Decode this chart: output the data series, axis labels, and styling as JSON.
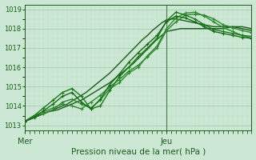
{
  "xlabel": "Pression niveau de la mer( hPa )",
  "bg_color": "#cce8d4",
  "grid_major_color": "#aaccb4",
  "grid_minor_color": "#bbddc4",
  "line_color_dark": "#1a5c1a",
  "ylim": [
    1012.75,
    1019.25
  ],
  "yticks": [
    1013,
    1014,
    1015,
    1016,
    1017,
    1018,
    1019
  ],
  "xlim": [
    0,
    48
  ],
  "mer_x": 0,
  "jeu_x": 30,
  "vline_x": 30,
  "vline_color": "#4a7a4a",
  "lines": [
    {
      "x": [
        0,
        1,
        2,
        3,
        4,
        5,
        6,
        7,
        8,
        9,
        10,
        11,
        12,
        13,
        14,
        15,
        16,
        17,
        18,
        19,
        20,
        21,
        22,
        23,
        24,
        25,
        26,
        27,
        28,
        29,
        30,
        31,
        32,
        33,
        34,
        35,
        36,
        37,
        38,
        39,
        40,
        41,
        42,
        43,
        44,
        45,
        46,
        47,
        48
      ],
      "y": [
        1013.2,
        1013.3,
        1013.4,
        1013.5,
        1013.6,
        1013.7,
        1013.75,
        1013.8,
        1013.9,
        1014.0,
        1014.1,
        1014.2,
        1014.3,
        1014.45,
        1014.6,
        1014.75,
        1014.9,
        1015.05,
        1015.2,
        1015.4,
        1015.6,
        1015.8,
        1016.0,
        1016.2,
        1016.45,
        1016.7,
        1016.95,
        1017.2,
        1017.45,
        1017.65,
        1017.85,
        1017.9,
        1017.95,
        1018.0,
        1018.0,
        1018.0,
        1018.0,
        1018.0,
        1018.0,
        1018.0,
        1018.0,
        1018.0,
        1018.0,
        1018.05,
        1018.1,
        1018.1,
        1018.1,
        1018.05,
        1018.0
      ],
      "color": "#1a5c1a",
      "lw": 1.0,
      "marker": null
    },
    {
      "x": [
        0,
        1,
        2,
        3,
        4,
        5,
        6,
        7,
        8,
        9,
        10,
        11,
        12,
        13,
        14,
        15,
        16,
        17,
        18,
        19,
        20,
        21,
        22,
        23,
        24,
        25,
        26,
        27,
        28,
        29,
        30,
        31,
        32,
        33,
        34,
        35,
        36,
        37,
        38,
        39,
        40,
        41,
        42,
        43,
        44,
        45,
        46,
        47,
        48
      ],
      "y": [
        1013.2,
        1013.3,
        1013.4,
        1013.5,
        1013.6,
        1013.7,
        1013.8,
        1013.9,
        1014.0,
        1014.1,
        1014.25,
        1014.4,
        1014.55,
        1014.7,
        1014.9,
        1015.1,
        1015.3,
        1015.5,
        1015.7,
        1015.95,
        1016.2,
        1016.45,
        1016.7,
        1016.95,
        1017.2,
        1017.45,
        1017.65,
        1017.9,
        1018.1,
        1018.3,
        1018.45,
        1018.5,
        1018.5,
        1018.45,
        1018.4,
        1018.35,
        1018.3,
        1018.25,
        1018.2,
        1018.15,
        1018.1,
        1018.1,
        1018.1,
        1018.1,
        1018.1,
        1018.05,
        1018.0,
        1017.95,
        1017.9
      ],
      "color": "#1a5c1a",
      "lw": 1.0,
      "marker": null
    },
    {
      "x": [
        0,
        2,
        4,
        6,
        8,
        10,
        12,
        14,
        16,
        18,
        20,
        22,
        24,
        26,
        28,
        30,
        32,
        34,
        36,
        38,
        40,
        42,
        44,
        46,
        48
      ],
      "y": [
        1013.2,
        1013.5,
        1013.7,
        1013.9,
        1014.1,
        1014.0,
        1013.85,
        1014.2,
        1014.55,
        1015.0,
        1015.35,
        1015.8,
        1016.1,
        1016.55,
        1017.0,
        1017.9,
        1018.35,
        1018.7,
        1018.75,
        1018.7,
        1018.5,
        1018.2,
        1018.05,
        1017.9,
        1017.8
      ],
      "color": "#2d8a2d",
      "lw": 1.0,
      "marker": "+",
      "ms": 3
    },
    {
      "x": [
        0,
        2,
        4,
        6,
        8,
        10,
        12,
        14,
        16,
        18,
        20,
        22,
        24,
        26,
        28,
        30,
        32,
        34,
        36,
        38,
        40,
        42,
        44,
        46,
        48
      ],
      "y": [
        1013.2,
        1013.45,
        1013.6,
        1013.8,
        1014.2,
        1014.35,
        1014.1,
        1013.9,
        1014.3,
        1014.9,
        1015.2,
        1015.7,
        1016.0,
        1016.6,
        1017.1,
        1018.0,
        1018.55,
        1018.8,
        1018.85,
        1018.65,
        1018.35,
        1018.05,
        1017.85,
        1017.65,
        1017.5
      ],
      "color": "#2d8a2d",
      "lw": 1.0,
      "marker": "+",
      "ms": 3
    },
    {
      "x": [
        0,
        2,
        4,
        6,
        8,
        10,
        12,
        14,
        16,
        18,
        20,
        22,
        24,
        26,
        28,
        30,
        32,
        34,
        36,
        38,
        40,
        42,
        44,
        46,
        48
      ],
      "y": [
        1013.2,
        1013.5,
        1013.9,
        1014.3,
        1014.7,
        1014.9,
        1014.5,
        1013.85,
        1014.0,
        1014.8,
        1015.5,
        1016.0,
        1016.55,
        1017.0,
        1017.5,
        1018.4,
        1018.85,
        1018.7,
        1018.5,
        1018.2,
        1017.95,
        1017.85,
        1017.75,
        1017.65,
        1017.6
      ],
      "color": "#1a7a1a",
      "lw": 1.0,
      "marker": "+",
      "ms": 3
    },
    {
      "x": [
        0,
        2,
        4,
        6,
        8,
        10,
        12,
        14,
        16,
        18,
        20,
        22,
        24,
        26,
        28,
        30,
        32,
        34,
        36,
        38,
        40,
        42,
        44,
        46,
        48
      ],
      "y": [
        1013.2,
        1013.4,
        1013.75,
        1014.1,
        1014.5,
        1014.7,
        1014.2,
        1013.85,
        1014.35,
        1015.1,
        1015.65,
        1016.25,
        1016.75,
        1017.2,
        1017.65,
        1018.35,
        1018.65,
        1018.55,
        1018.35,
        1018.1,
        1017.85,
        1017.75,
        1017.65,
        1017.55,
        1017.5
      ],
      "color": "#1a6a1a",
      "lw": 1.0,
      "marker": "+",
      "ms": 3
    }
  ]
}
